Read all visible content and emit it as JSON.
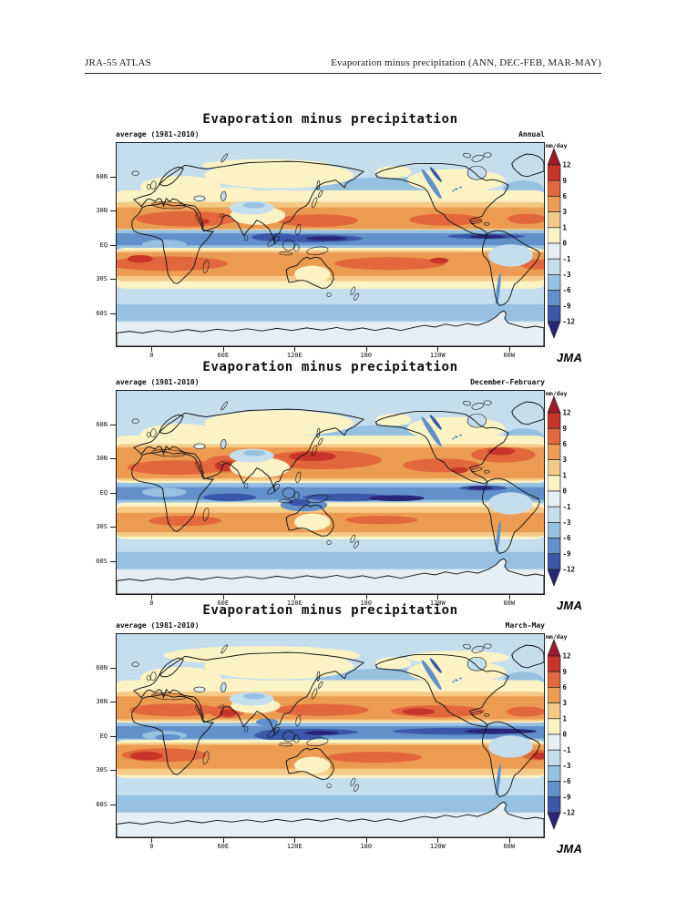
{
  "header": {
    "left": "JRA-55 ATLAS",
    "right": "Evaporation minus precipitation (ANN, DEC-FEB, MAR-MAY)"
  },
  "palette": {
    "gt12": "#9e1a2c",
    "p9_12": "#c93428",
    "p6_9": "#e2673c",
    "p3_6": "#ec9b52",
    "p1_3": "#f5ca86",
    "p0_1": "#fbf3c3",
    "m1_0": "#e6eff3",
    "m3_1": "#c5deee",
    "m6_3": "#97c1e0",
    "m9_6": "#6190ca",
    "m12_9": "#3b57a9",
    "lt12": "#282578",
    "coast": "#111111",
    "frame": "#1a1a1a"
  },
  "colorbar": {
    "unit": "mm/day",
    "ticks": [
      "12",
      "9",
      "6",
      "3",
      "1",
      "0",
      "-1",
      "-3",
      "-6",
      "-9",
      "-12"
    ]
  },
  "axes": {
    "x_ticks": [
      "0",
      "60E",
      "120E",
      "180",
      "120W",
      "60W"
    ],
    "y_ticks": [
      "60N",
      "30N",
      "EQ",
      "30S",
      "60S"
    ]
  },
  "panels": [
    {
      "title": "Evaporation minus precipitation",
      "subtitle_left": "average (1981-2010)",
      "subtitle_right": "Annual",
      "period_key": "annual",
      "logo": "JMA"
    },
    {
      "title": "Evaporation minus precipitation",
      "subtitle_left": "average (1981-2010)",
      "subtitle_right": "December-February",
      "period_key": "djf",
      "logo": "JMA"
    },
    {
      "title": "Evaporation minus precipitation",
      "subtitle_left": "average (1981-2010)",
      "subtitle_right": "March-May",
      "period_key": "mam",
      "logo": "JMA"
    }
  ]
}
